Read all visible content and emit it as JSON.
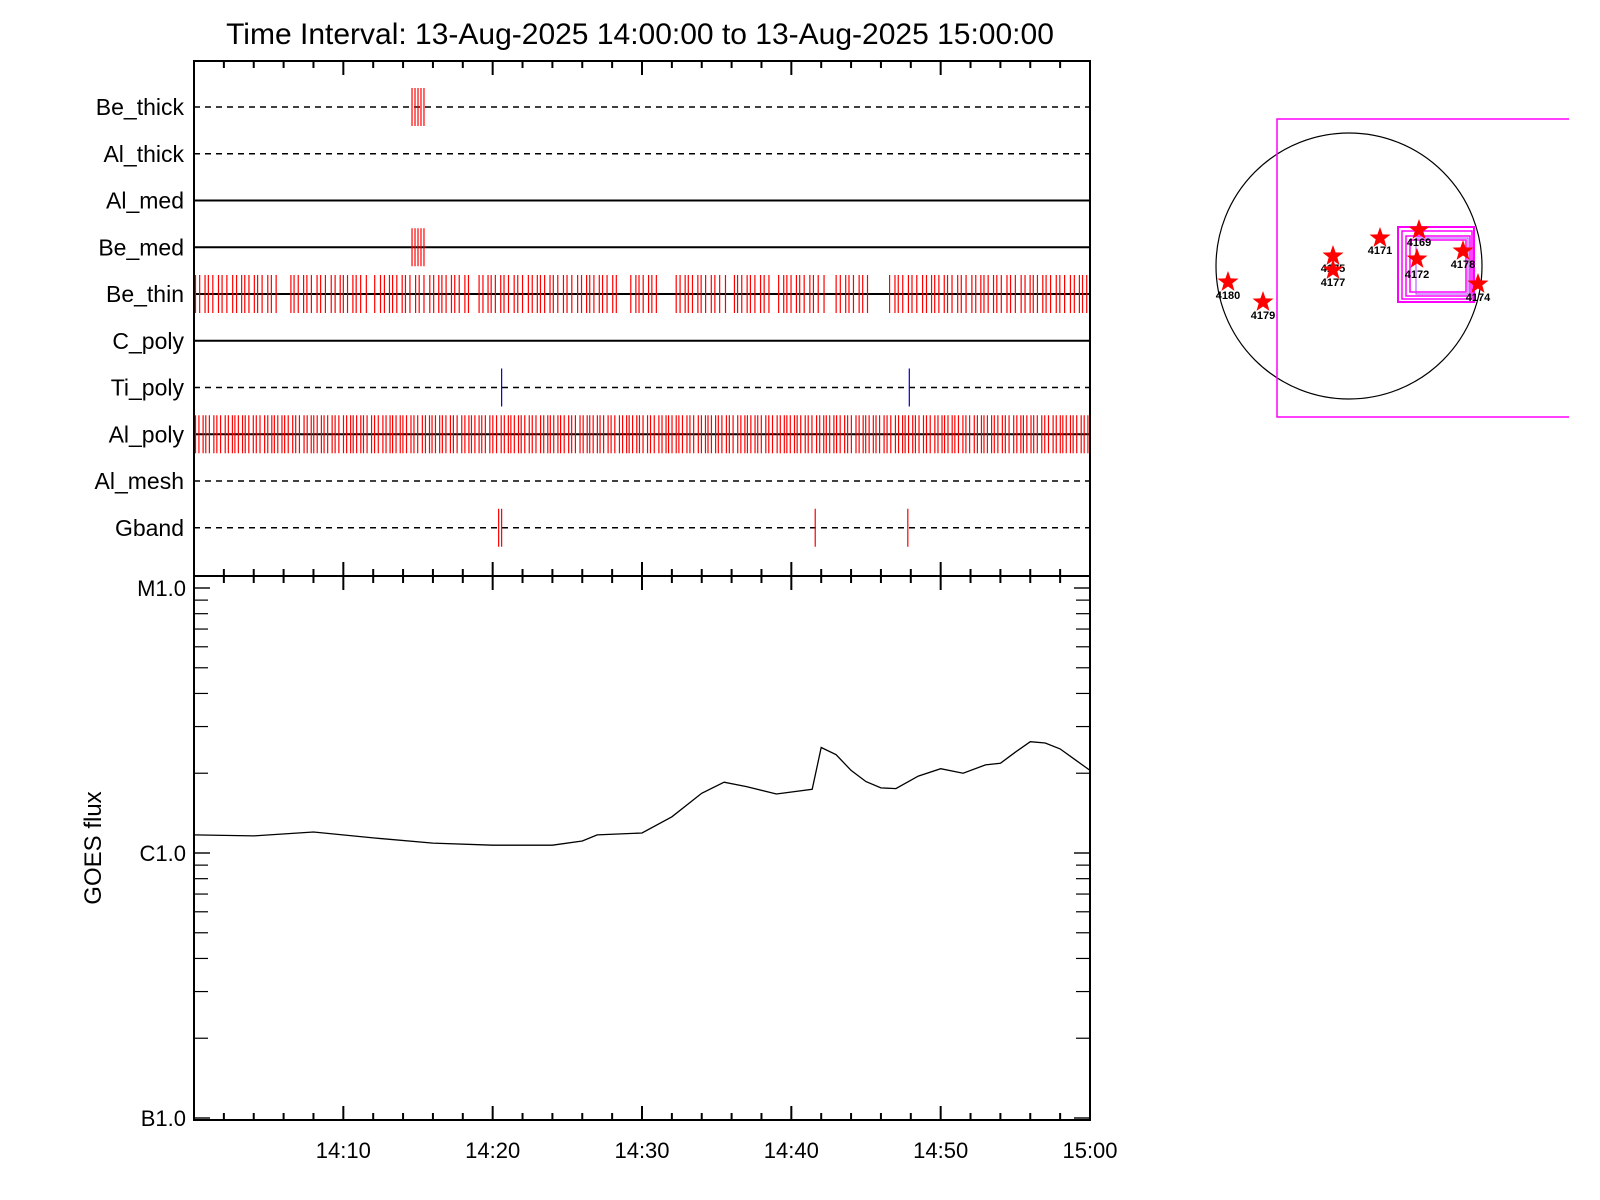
{
  "chart_data": {
    "title": "Time Interval: 13-Aug-2025 14:00:00 to 13-Aug-2025 15:00:00",
    "x_range": [
      "14:00",
      "15:00"
    ],
    "x_tick_labels": [
      "14:10",
      "14:20",
      "14:30",
      "14:40",
      "14:50",
      "15:00"
    ],
    "colors": {
      "red": "#ff0000",
      "blue": "#0000cc",
      "magenta": "#ff00ff",
      "black": "#000000"
    },
    "filter_panel": {
      "type": "event-timeline",
      "rows": [
        {
          "label": "Be_thick",
          "line": "dashed",
          "events": [
            14.6,
            14.8,
            15.0,
            15.2,
            15.4
          ],
          "event_color": "red",
          "event_size": "medium"
        },
        {
          "label": "Al_thick",
          "line": "dashed",
          "events": [],
          "event_color": "red",
          "event_size": "medium"
        },
        {
          "label": "Al_med",
          "line": "solid",
          "events": [],
          "event_color": "red",
          "event_size": "medium"
        },
        {
          "label": "Be_med",
          "line": "solid",
          "events": [
            14.6,
            14.8,
            15.0,
            15.2,
            15.4
          ],
          "event_color": "red",
          "event_size": "medium"
        },
        {
          "label": "Be_thin",
          "line": "solid",
          "events": "dense",
          "event_color": "red",
          "event_size": "large",
          "gaps": [
            [
              5.5,
              6.3
            ],
            [
              11.6,
              12.0
            ],
            [
              18.4,
              18.9
            ],
            [
              24.4,
              24.6
            ],
            [
              28.3,
              29.1
            ],
            [
              31.1,
              32.2
            ],
            [
              35.6,
              35.9
            ],
            [
              38.6,
              39.1
            ],
            [
              42.3,
              42.9
            ],
            [
              45.3,
              46.5
            ]
          ]
        },
        {
          "label": "C_poly",
          "line": "solid",
          "events": [],
          "event_color": "red",
          "event_size": "medium"
        },
        {
          "label": "Ti_poly",
          "line": "dashed",
          "events": [
            20.6,
            47.9
          ],
          "event_color": "blue",
          "event_size": "large"
        },
        {
          "label": "Al_poly",
          "line": "solid",
          "events": "dense",
          "event_color": "red",
          "event_size": "large",
          "gaps": []
        },
        {
          "label": "Al_mesh",
          "line": "dashed",
          "events": [],
          "event_color": "red",
          "event_size": "medium"
        },
        {
          "label": "Gband",
          "line": "dashed",
          "events": [
            20.4,
            20.6,
            41.6,
            47.8
          ],
          "event_color": "red",
          "event_size": "large"
        }
      ]
    },
    "goes_panel": {
      "type": "line",
      "ylabel": "GOES flux",
      "yscale": "log",
      "ylim": [
        1e-07,
        1e-05
      ],
      "y_tick_labels": [
        "B1.0",
        "C1.0",
        "M1.0"
      ],
      "x_minutes": [
        0,
        4,
        8,
        12,
        16,
        20,
        24,
        26,
        27,
        30,
        32,
        34,
        35.5,
        37,
        39,
        41.4,
        42,
        43,
        44,
        45,
        46,
        47,
        48.5,
        50,
        51.5,
        53,
        54,
        55,
        56,
        57,
        58,
        59,
        60
      ],
      "y_flux": [
        1.17e-06,
        1.16e-06,
        1.2e-06,
        1.14e-06,
        1.09e-06,
        1.07e-06,
        1.07e-06,
        1.11e-06,
        1.17e-06,
        1.19e-06,
        1.37e-06,
        1.68e-06,
        1.85e-06,
        1.78e-06,
        1.67e-06,
        1.74e-06,
        2.5e-06,
        2.35e-06,
        2.05e-06,
        1.86e-06,
        1.76e-06,
        1.75e-06,
        1.95e-06,
        2.08e-06,
        2e-06,
        2.15e-06,
        2.18e-06,
        2.4e-06,
        2.63e-06,
        2.6e-06,
        2.47e-06,
        2.25e-06,
        2.05e-06
      ]
    },
    "disk_panel": {
      "type": "scatter",
      "description_markers": "red stars with AR numbers",
      "field_of_view_color": "magenta",
      "active_regions": [
        {
          "label": "4169"
        },
        {
          "label": "4171"
        },
        {
          "label": "4172"
        },
        {
          "label": "4175"
        },
        {
          "label": "4177"
        },
        {
          "label": "4178"
        },
        {
          "label": "4174"
        },
        {
          "label": "4180"
        },
        {
          "label": "4179"
        }
      ]
    }
  }
}
